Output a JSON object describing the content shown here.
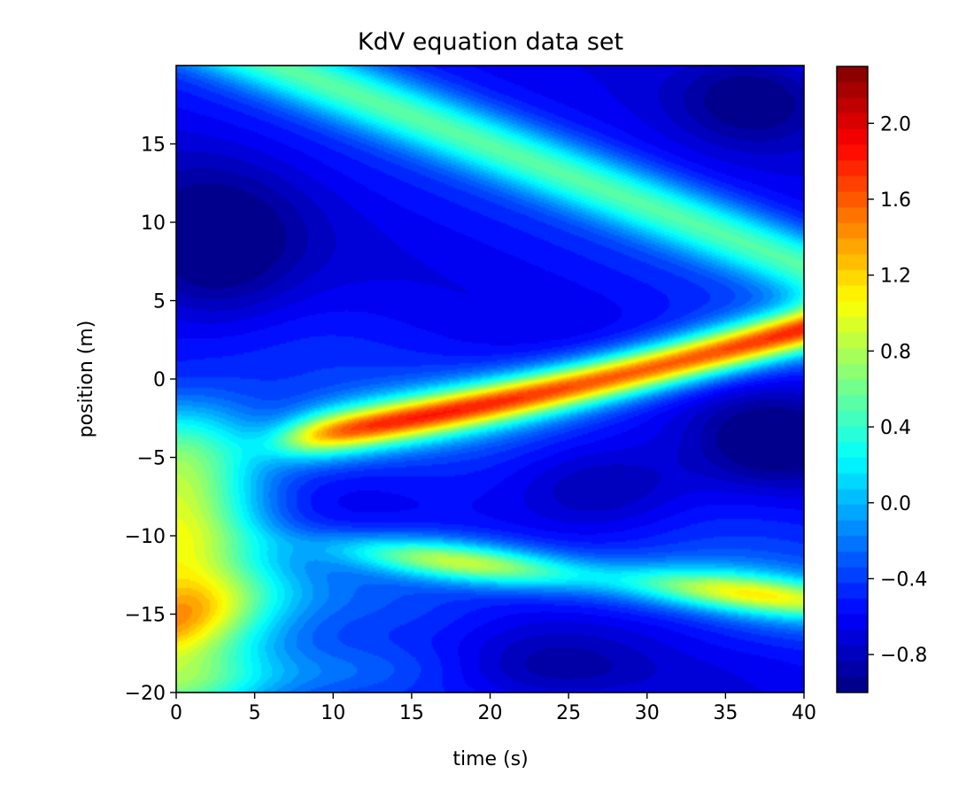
{
  "chart_data": {
    "type": "heatmap",
    "subtype": "filled-contour",
    "title": "KdV equation data set",
    "xlabel": "time (s)",
    "ylabel": "position (m)",
    "xlim": [
      0,
      40
    ],
    "ylim": [
      -20,
      20
    ],
    "xticks": [
      0,
      5,
      10,
      15,
      20,
      25,
      30,
      35,
      40
    ],
    "yticks": [
      -20,
      -15,
      -10,
      -5,
      0,
      5,
      10,
      15
    ],
    "xtick_labels": [
      "0",
      "5",
      "10",
      "15",
      "20",
      "25",
      "30",
      "35",
      "40"
    ],
    "ytick_labels": [
      "−20",
      "−15",
      "−10",
      "−5",
      "0",
      "5",
      "10",
      "15"
    ],
    "colormap": "jet",
    "colorbar": {
      "range": [
        -1.0,
        2.3
      ],
      "ticks": [
        -0.8,
        -0.4,
        0.0,
        0.4,
        0.8,
        1.2,
        1.6,
        2.0
      ],
      "tick_labels": [
        "−0.8",
        "−0.4",
        "0.0",
        "0.4",
        "0.8",
        "1.2",
        "1.6",
        "2.0"
      ],
      "levels": 40
    },
    "grid": false,
    "features": [
      {
        "name": "primary soliton",
        "t": [
          6,
          40
        ],
        "x": [
          -3.5,
          3.2
        ],
        "peak": 2.2
      },
      {
        "name": "secondary wave",
        "t": [
          10,
          36
        ],
        "x": [
          -11.0,
          -14.0
        ],
        "peak": 1.4
      },
      {
        "name": "upper crest",
        "t": [
          0,
          40
        ],
        "x": [
          20,
          6
        ],
        "peak": 0.5
      },
      {
        "name": "initial lower plateau",
        "t": [
          0,
          6
        ],
        "x": [
          -20,
          -2
        ],
        "value": 0.95
      }
    ],
    "colors": {
      "min": "#00008f",
      "low": "#0000ff",
      "mid_low": "#00ffff",
      "mid_high": "#ffff00",
      "high": "#ff0000",
      "max": "#800000"
    }
  }
}
